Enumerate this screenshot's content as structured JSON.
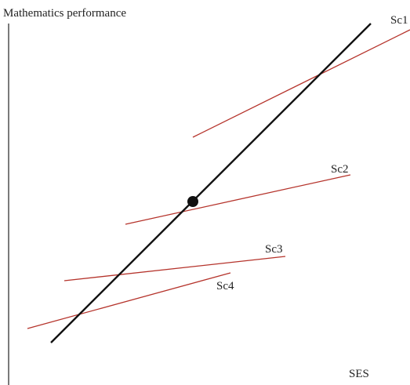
{
  "y_axis_label": "Mathematics performance",
  "x_axis_label": "SES",
  "school_lines": [
    {
      "label": "Sc1",
      "color": "#b5332b"
    },
    {
      "label": "Sc2",
      "color": "#b5332b"
    },
    {
      "label": "Sc3",
      "color": "#b5332b"
    },
    {
      "label": "Sc4",
      "color": "#b5332b"
    }
  ],
  "overall_line": {
    "color": "#111111"
  },
  "point_marker": {
    "color": "#111111"
  }
}
